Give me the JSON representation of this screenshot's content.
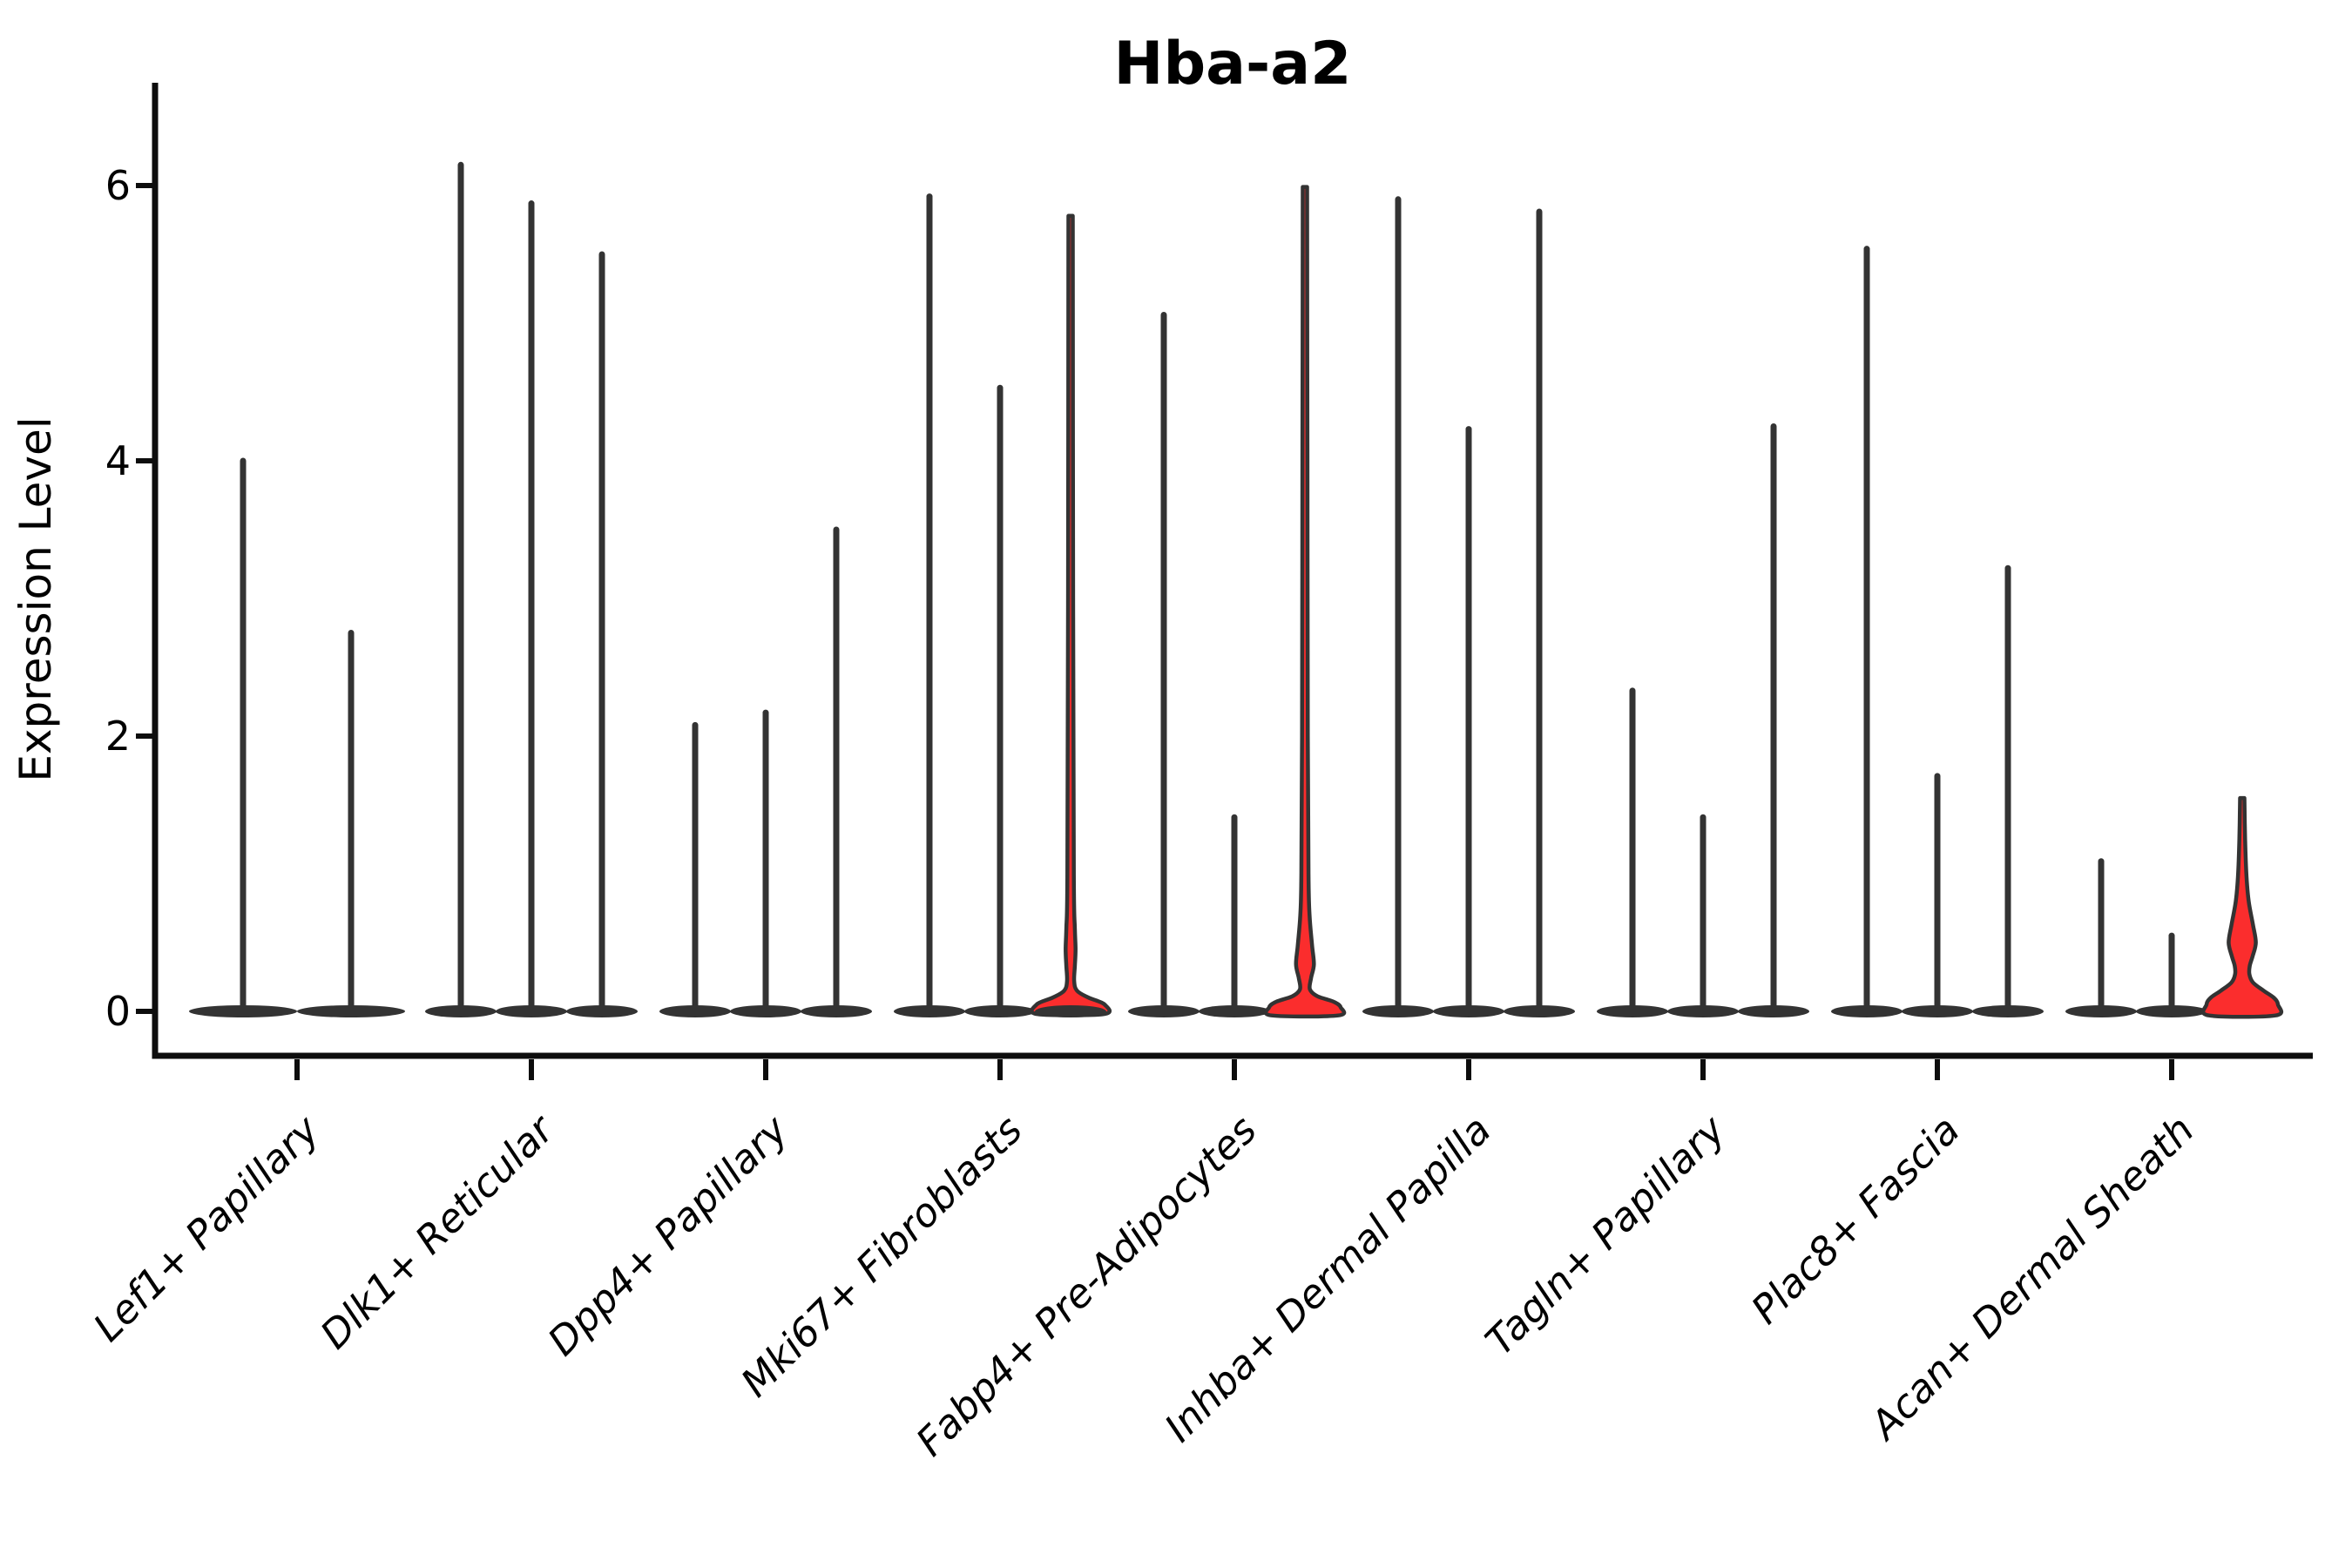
{
  "title": "Hba-a2",
  "y_axis": {
    "label": "Expression Level",
    "ticks": [
      0,
      2,
      4,
      6
    ]
  },
  "colors": {
    "violin_outline": "#333333",
    "violin_fill_red": "#fb2d2d",
    "axis": "#0d0d0d",
    "text": "#000000",
    "background": "#ffffff"
  },
  "chart_data": {
    "type": "violin",
    "title": "Hba-a2",
    "xlabel": "",
    "ylabel": "Expression Level",
    "ylim": [
      -0.35,
      6.8
    ],
    "yticks": [
      0,
      2,
      4,
      6
    ],
    "grid": false,
    "legend": "none",
    "categories": [
      "Lef1+ Papillary",
      "Dlk1+ Reticular",
      "Dpp4+ Papillary",
      "Mki67+ Fibroblasts",
      "Fabp4+ Pre-Adipocytes",
      "Inhba+ Dermal Papilla",
      "Tagln+ Papillary",
      "Plac8+ Fascia",
      "Acan+ Dermal Sheath"
    ],
    "description": "Violin plot of Hba-a2 expression per fibroblast subtype. Most violins are needle-thin spikes with a flat wide base at 0 (nearly all cells at 0, few high outliers). Two violins show a visible red-filled density bulge near 0.3-0.5.",
    "series": [
      {
        "category": "Lef1+ Papillary",
        "violins": [
          {
            "max": 4.0
          },
          {
            "max": 2.75
          }
        ]
      },
      {
        "category": "Dlk1+ Reticular",
        "violins": [
          {
            "max": 6.15
          },
          {
            "max": 5.87
          },
          {
            "max": 5.5
          }
        ]
      },
      {
        "category": "Dpp4+ Papillary",
        "violins": [
          {
            "max": 2.08
          },
          {
            "max": 2.17
          },
          {
            "max": 3.5
          }
        ]
      },
      {
        "category": "Mki67+ Fibroblasts",
        "violins": [
          {
            "max": 5.92
          },
          {
            "max": 4.53
          },
          {
            "max": 5.78,
            "shape": "mki67_bulge",
            "fill": "red",
            "dark_base_overlay": true
          }
        ]
      },
      {
        "category": "Fabp4+ Pre-Adipocytes",
        "violins": [
          {
            "max": 5.06
          },
          {
            "max": 1.41
          },
          {
            "max": 5.99,
            "shape": "fabp4_red",
            "fill": "red"
          }
        ]
      },
      {
        "category": "Inhba+ Dermal Papilla",
        "violins": [
          {
            "max": 5.9
          },
          {
            "max": 4.23
          },
          {
            "max": 5.81
          }
        ]
      },
      {
        "category": "Tagln+ Papillary",
        "violins": [
          {
            "max": 2.33
          },
          {
            "max": 1.41
          },
          {
            "max": 4.25
          }
        ]
      },
      {
        "category": "Plac8+ Fascia",
        "violins": [
          {
            "max": 5.54
          },
          {
            "max": 1.71
          },
          {
            "max": 3.22
          }
        ]
      },
      {
        "category": "Acan+ Dermal Sheath",
        "violins": [
          {
            "max": 1.09
          },
          {
            "max": 0.55
          },
          {
            "max": 1.55,
            "shape": "acan_red",
            "fill": "red"
          }
        ]
      }
    ],
    "shapes": {
      "fabp4_red": [
        [
          5.99,
          0.06
        ],
        [
          4.0,
          0.07
        ],
        [
          2.0,
          0.08
        ],
        [
          1.0,
          0.1
        ],
        [
          0.7,
          0.13
        ],
        [
          0.48,
          0.2
        ],
        [
          0.34,
          0.25
        ],
        [
          0.24,
          0.17
        ],
        [
          0.16,
          0.14
        ],
        [
          0.11,
          0.35
        ],
        [
          0.07,
          0.8
        ],
        [
          0.03,
          1.0
        ],
        [
          -0.03,
          0.93
        ]
      ],
      "acan_red": [
        [
          1.55,
          0.06
        ],
        [
          1.25,
          0.08
        ],
        [
          0.98,
          0.12
        ],
        [
          0.8,
          0.18
        ],
        [
          0.63,
          0.3
        ],
        [
          0.5,
          0.38
        ],
        [
          0.4,
          0.29
        ],
        [
          0.33,
          0.21
        ],
        [
          0.27,
          0.2
        ],
        [
          0.21,
          0.3
        ],
        [
          0.15,
          0.6
        ],
        [
          0.1,
          0.88
        ],
        [
          0.05,
          1.0
        ],
        [
          -0.03,
          0.93
        ]
      ],
      "mki67_bulge": [
        [
          5.78,
          0.06
        ],
        [
          3.0,
          0.07
        ],
        [
          1.0,
          0.09
        ],
        [
          0.6,
          0.12
        ],
        [
          0.45,
          0.14
        ],
        [
          0.33,
          0.12
        ],
        [
          0.22,
          0.1
        ],
        [
          0.15,
          0.18
        ],
        [
          0.1,
          0.5
        ],
        [
          0.05,
          0.95
        ],
        [
          -0.02,
          0.93
        ]
      ]
    }
  }
}
